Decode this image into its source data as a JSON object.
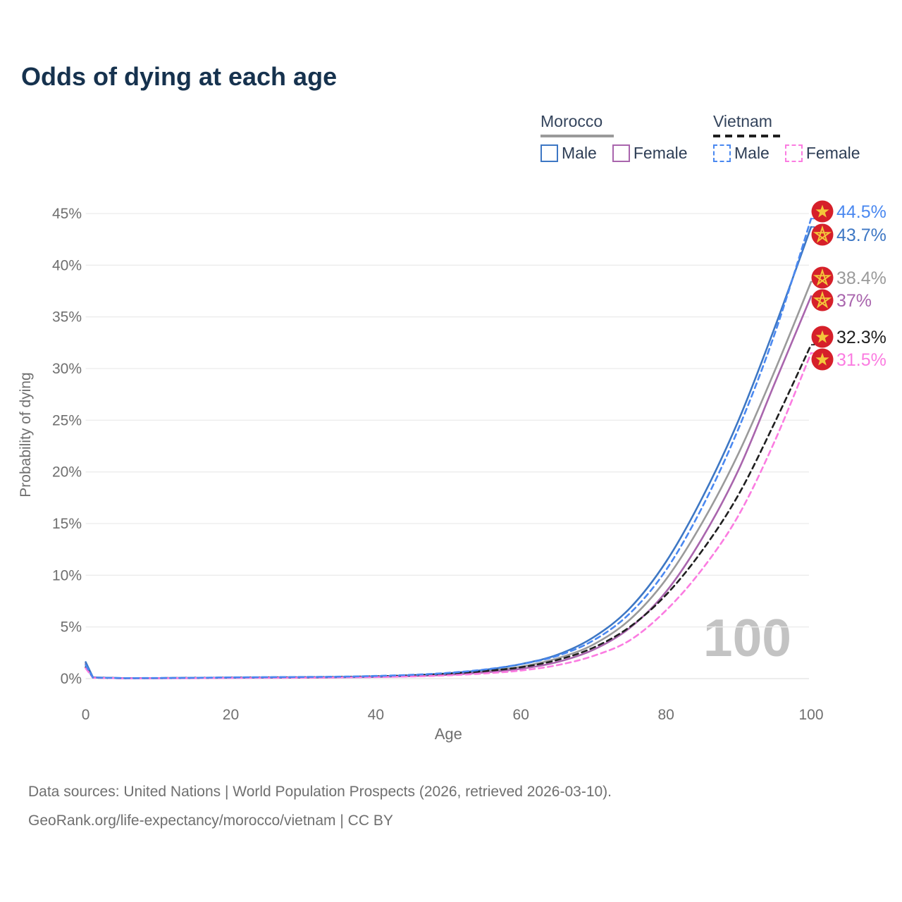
{
  "title": "Odds of dying at each age",
  "legend": {
    "morocco": {
      "name": "Morocco",
      "male_label": "Male",
      "female_label": "Female"
    },
    "vietnam": {
      "name": "Vietnam",
      "male_label": "Male",
      "female_label": "Female"
    }
  },
  "chart_data": {
    "type": "line",
    "title": "Odds of dying at each age",
    "xlabel": "Age",
    "ylabel": "Probability of dying",
    "xlim": [
      0,
      100
    ],
    "ylim": [
      0,
      45
    ],
    "x_ticks": [
      0,
      20,
      40,
      60,
      80,
      100
    ],
    "y_ticks": [
      0,
      5,
      10,
      15,
      20,
      25,
      30,
      35,
      40,
      45
    ],
    "y_tick_suffix": "%",
    "grid": "horizontal-only",
    "legend_position": "top-right",
    "age_counter": "100",
    "x": [
      0,
      1,
      5,
      10,
      15,
      20,
      25,
      30,
      35,
      40,
      45,
      50,
      55,
      60,
      65,
      70,
      75,
      80,
      85,
      90,
      95,
      100
    ],
    "series": [
      {
        "name": "Morocco Total",
        "country": "Morocco",
        "sex": "Total",
        "color": "#9a9a9a",
        "dash": "solid",
        "in_legend": false,
        "values": [
          1.5,
          0.11,
          0.04,
          0.05,
          0.06,
          0.09,
          0.1,
          0.11,
          0.14,
          0.19,
          0.28,
          0.44,
          0.72,
          1.15,
          1.95,
          3.3,
          5.7,
          9.6,
          15.1,
          21.8,
          29.8,
          38.4
        ],
        "end_label": "38.4%"
      },
      {
        "name": "Morocco Female",
        "country": "Morocco",
        "sex": "Female",
        "color": "#a965ad",
        "dash": "solid",
        "in_legend": true,
        "values": [
          1.4,
          0.1,
          0.04,
          0.04,
          0.05,
          0.07,
          0.08,
          0.09,
          0.12,
          0.16,
          0.24,
          0.37,
          0.6,
          0.95,
          1.6,
          2.8,
          4.9,
          8.4,
          13.6,
          20.2,
          28.6,
          37.0
        ],
        "end_label": "37%"
      },
      {
        "name": "Morocco Male",
        "country": "Morocco",
        "sex": "Male",
        "color": "#3d77c4",
        "dash": "solid",
        "in_legend": true,
        "values": [
          1.6,
          0.12,
          0.05,
          0.05,
          0.07,
          0.1,
          0.12,
          0.13,
          0.16,
          0.22,
          0.33,
          0.52,
          0.85,
          1.4,
          2.3,
          4.0,
          6.8,
          11.3,
          17.5,
          25.0,
          34.0,
          43.7
        ],
        "end_label": "43.7%"
      },
      {
        "name": "Vietnam Total",
        "country": "Vietnam",
        "sex": "Total",
        "color": "#1f1f1f",
        "dash": "dashed",
        "in_legend": false,
        "values": [
          1.1,
          0.09,
          0.04,
          0.05,
          0.07,
          0.1,
          0.12,
          0.13,
          0.16,
          0.22,
          0.31,
          0.47,
          0.73,
          1.1,
          1.8,
          3.0,
          5.0,
          8.1,
          12.4,
          17.8,
          24.8,
          32.3
        ],
        "end_label": "32.3%"
      },
      {
        "name": "Vietnam Female",
        "country": "Vietnam",
        "sex": "Female",
        "color": "#fb7ce1",
        "dash": "dashed",
        "in_legend": true,
        "values": [
          1.0,
          0.08,
          0.03,
          0.04,
          0.05,
          0.07,
          0.08,
          0.09,
          0.11,
          0.15,
          0.21,
          0.32,
          0.5,
          0.78,
          1.3,
          2.2,
          3.7,
          6.6,
          10.6,
          15.8,
          23.0,
          31.5
        ],
        "end_label": "31.5%"
      },
      {
        "name": "Vietnam Male",
        "country": "Vietnam",
        "sex": "Male",
        "color": "#4a88f0",
        "dash": "dashed",
        "in_legend": true,
        "values": [
          1.3,
          0.1,
          0.05,
          0.06,
          0.08,
          0.12,
          0.14,
          0.16,
          0.19,
          0.26,
          0.37,
          0.56,
          0.88,
          1.4,
          2.2,
          3.7,
          6.3,
          10.5,
          16.6,
          24.2,
          33.4,
          44.5
        ],
        "end_label": "44.5%"
      }
    ],
    "flag_colors": {
      "badge_red": "#d6202a",
      "star_gold": "#f3c73b"
    },
    "grid_color": "#ececec",
    "baseline_color": "#e2e2e2",
    "axis_text_color": "#6f6f6f"
  },
  "footer": {
    "line1": "Data sources: United Nations | World Population Prospects (2026, retrieved 2026-03-10).",
    "line2": "GeoRank.org/life-expectancy/morocco/vietnam | CC BY"
  }
}
